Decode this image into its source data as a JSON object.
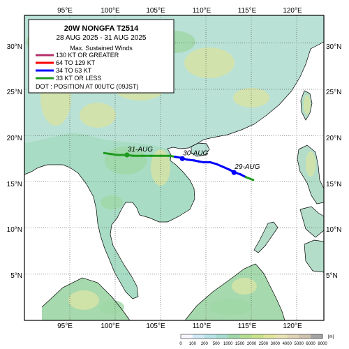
{
  "title": "20W  NONGFA  T2514",
  "period": "28 AUG 2025 - 31 AUG 2025",
  "legend": {
    "heading": "Max. Sustained Winds",
    "entries": [
      {
        "label": "130 KT OR GREATER",
        "color": "#b5306b"
      },
      {
        "label": "64 TO 129 KT",
        "color": "#ff0000"
      },
      {
        "label": "34 TO 63 KT",
        "color": "#0000ff"
      },
      {
        "label": "33 KT OR LESS",
        "color": "#1f9b1f"
      }
    ],
    "dot_note": "DOT : POSITION AT 00UTC (09JST)"
  },
  "lon_ticks": [
    "95°E",
    "100°E",
    "105°E",
    "110°E",
    "115°E",
    "120°E"
  ],
  "lat_ticks": [
    "30°N",
    "25°N",
    "20°N",
    "15°N",
    "10°N",
    "5°N"
  ],
  "day_labels": [
    "29-AUG",
    "30-AUG",
    "31-AUG"
  ],
  "colorbar": {
    "ticks": [
      "0",
      "100",
      "200",
      "500",
      "1000",
      "1500",
      "2000",
      "2500",
      "3000",
      "4000",
      "5000",
      "6000",
      "8000"
    ],
    "unit": "[m]",
    "colors": [
      "#f7f7ff",
      "#cfe9f7",
      "#b7e3e6",
      "#a4dcd0",
      "#9fd7a6",
      "#b3dd8f",
      "#c8e28a",
      "#dfe59b",
      "#e9e3b2",
      "#e0d3b3",
      "#cfc2ad",
      "#a3a3a3"
    ]
  },
  "colors": {
    "sea": "#ffffff",
    "land_low": "#b6e2da",
    "land_mid": "#a5d9a8",
    "land_high": "#d6e3a6"
  },
  "chart_data": {
    "type": "map",
    "xlim": [
      90,
      123
    ],
    "ylim": [
      0,
      33
    ],
    "track": [
      {
        "lon": 115.2,
        "lat": 15.2,
        "category": "33 KT OR LESS"
      },
      {
        "lon": 114.4,
        "lat": 15.5,
        "category": "33 KT OR LESS"
      },
      {
        "lon": 113.8,
        "lat": 15.8,
        "category": "34 TO 63 KT"
      },
      {
        "lon": 113.2,
        "lat": 16.0,
        "category": "34 TO 63 KT"
      },
      {
        "lon": 112.6,
        "lat": 16.3,
        "category": "34 TO 63 KT"
      },
      {
        "lon": 111.9,
        "lat": 16.6,
        "category": "34 TO 63 KT"
      },
      {
        "lon": 111.2,
        "lat": 16.9,
        "category": "34 TO 63 KT"
      },
      {
        "lon": 110.5,
        "lat": 17.1,
        "category": "34 TO 63 KT"
      },
      {
        "lon": 109.8,
        "lat": 17.1,
        "category": "34 TO 63 KT"
      },
      {
        "lon": 109.2,
        "lat": 17.2,
        "category": "34 TO 63 KT"
      },
      {
        "lon": 108.7,
        "lat": 17.3,
        "category": "34 TO 63 KT"
      },
      {
        "lon": 107.9,
        "lat": 17.4,
        "category": "34 TO 63 KT"
      },
      {
        "lon": 107.2,
        "lat": 17.6,
        "category": "34 TO 63 KT"
      },
      {
        "lon": 106.6,
        "lat": 17.7,
        "category": "34 TO 63 KT"
      },
      {
        "lon": 106.0,
        "lat": 17.8,
        "category": "33 KT OR LESS"
      },
      {
        "lon": 105.0,
        "lat": 17.8,
        "category": "33 KT OR LESS"
      },
      {
        "lon": 104.0,
        "lat": 17.8,
        "category": "33 KT OR LESS"
      },
      {
        "lon": 103.0,
        "lat": 17.8,
        "category": "33 KT OR LESS"
      },
      {
        "lon": 102.0,
        "lat": 17.8,
        "category": "33 KT OR LESS"
      },
      {
        "lon": 101.2,
        "lat": 17.9,
        "category": "33 KT OR LESS"
      },
      {
        "lon": 100.3,
        "lat": 17.9,
        "category": "33 KT OR LESS"
      },
      {
        "lon": 99.5,
        "lat": 18.0,
        "category": "33 KT OR LESS"
      },
      {
        "lon": 98.8,
        "lat": 18.1,
        "category": "33 KT OR LESS"
      }
    ],
    "daily_positions": [
      {
        "label": "29-AUG",
        "lon": 113.1,
        "lat": 16.0
      },
      {
        "label": "30-AUG",
        "lon": 107.4,
        "lat": 17.5
      },
      {
        "label": "31-AUG",
        "lon": 101.3,
        "lat": 17.9
      }
    ]
  }
}
